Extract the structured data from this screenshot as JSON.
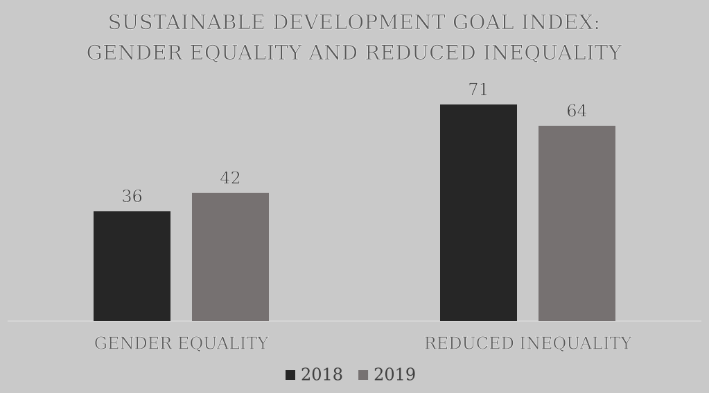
{
  "chart_data": {
    "type": "bar",
    "title": [
      "SUSTAINABLE DEVELOPMENT GOAL INDEX:",
      "GENDER EQUALITY AND REDUCED INEQUALITY"
    ],
    "categories": [
      "GENDER EQUALITY",
      "REDUCED INEQUALITY"
    ],
    "series": [
      {
        "name": "2018",
        "color": "#262626",
        "values": [
          36,
          71
        ]
      },
      {
        "name": "2019",
        "color": "#767171",
        "values": [
          42,
          64
        ]
      }
    ],
    "data_labels": true
  }
}
